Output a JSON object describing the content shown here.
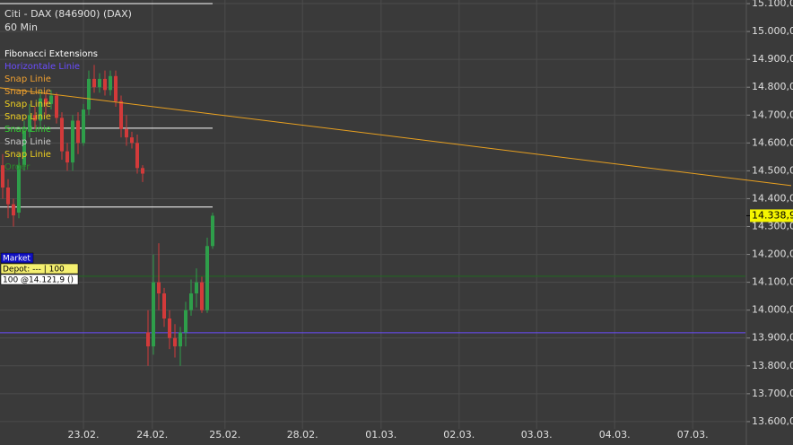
{
  "chart_data": {
    "type": "candlestick",
    "title": "Citi - DAX (846900) (DAX)",
    "subtitle": "60 Min",
    "x": [
      0.5,
      1.5,
      2.5,
      3.5,
      4.5,
      5.5,
      6.5,
      7.5,
      8.5,
      9.5,
      10.5,
      11.5,
      12.5,
      13.5,
      14.5,
      15.5,
      16.5,
      17.5,
      18.5,
      19.5,
      20.5,
      21.5,
      22.5,
      23.5,
      24.5,
      25.5,
      26.5,
      27.5,
      28.5,
      29.5,
      30.5,
      31.5,
      32.5,
      33.5,
      34.5,
      35.5,
      36.5,
      37.5,
      38.5,
      39.5
    ],
    "open": [
      14520,
      14440,
      14380,
      14350,
      14520,
      14640,
      14700,
      14680,
      14760,
      14740,
      14770,
      14690,
      14570,
      14530,
      14680,
      14600,
      14720,
      14830,
      14800,
      14830,
      14790,
      14840,
      14750,
      14650,
      14620,
      14600,
      14510,
      13920,
      13870,
      14100,
      14060,
      13970,
      13900,
      13870,
      13920,
      14000,
      14060,
      14100,
      14000,
      14230
    ],
    "high": [
      14560,
      14470,
      14400,
      14560,
      14680,
      14740,
      14730,
      14790,
      14780,
      14790,
      14780,
      14710,
      14600,
      14700,
      14710,
      14740,
      14860,
      14880,
      14850,
      14860,
      14860,
      14860,
      14770,
      14700,
      14640,
      14630,
      14520,
      14000,
      14200,
      14240,
      14080,
      14000,
      13950,
      13940,
      14030,
      14110,
      14150,
      14120,
      14260,
      14350
    ],
    "low": [
      14400,
      14330,
      14300,
      14330,
      14500,
      14620,
      14650,
      14660,
      14700,
      14720,
      14670,
      14540,
      14500,
      14500,
      14560,
      14590,
      14700,
      14780,
      14780,
      14770,
      14770,
      14730,
      14620,
      14590,
      14580,
      14490,
      14460,
      13800,
      13840,
      14000,
      13940,
      13860,
      13830,
      13800,
      13870,
      13980,
      14010,
      13990,
      13990,
      14220
    ],
    "close": [
      14440,
      14380,
      14340,
      14520,
      14640,
      14700,
      14680,
      14760,
      14740,
      14770,
      14690,
      14570,
      14530,
      14680,
      14600,
      14720,
      14830,
      14800,
      14830,
      14790,
      14840,
      14750,
      14650,
      14620,
      14600,
      14510,
      14490,
      13870,
      14100,
      14060,
      13970,
      13900,
      13870,
      13920,
      14000,
      14060,
      14100,
      14000,
      14230,
      14338.9
    ],
    "up_color": "#2e9e4a",
    "down_color": "#d23a3a",
    "xlim": [
      0,
      147
    ],
    "ylim": [
      13574,
      15113
    ],
    "yticks": [
      {
        "value": 13600,
        "label": "13.600,0"
      },
      {
        "value": 13700,
        "label": "13.700,0"
      },
      {
        "value": 13800,
        "label": "13.800,0"
      },
      {
        "value": 13900,
        "label": "13.900,0"
      },
      {
        "value": 14000,
        "label": "14.000,0"
      },
      {
        "value": 14100,
        "label": "14.100,0"
      },
      {
        "value": 14200,
        "label": "14.200,0"
      },
      {
        "value": 14300,
        "label": "14.300,0"
      },
      {
        "value": 14400,
        "label": "14.400,0"
      },
      {
        "value": 14500,
        "label": "14.500,0"
      },
      {
        "value": 14600,
        "label": "14.600,0"
      },
      {
        "value": 14700,
        "label": "14.700,0"
      },
      {
        "value": 14800,
        "label": "14.800,0"
      },
      {
        "value": 14900,
        "label": "14.900,0"
      },
      {
        "value": 15000,
        "label": "15.000,0"
      },
      {
        "value": 15100,
        "label": "15.100,0"
      }
    ],
    "xticks": [
      {
        "value": 15.5,
        "label": "23.02."
      },
      {
        "value": 28.3,
        "label": "24.02."
      },
      {
        "value": 41.8,
        "label": "25.02."
      },
      {
        "value": 56.2,
        "label": "28.02."
      },
      {
        "value": 70.8,
        "label": "01.03."
      },
      {
        "value": 85.3,
        "label": "02.03."
      },
      {
        "value": 99.7,
        "label": "03.03."
      },
      {
        "value": 114.2,
        "label": "04.03."
      },
      {
        "value": 128.7,
        "label": "07.03."
      }
    ],
    "grid": true,
    "legend": [
      {
        "name": "Fibonacci Extensions",
        "color": "#ffffff"
      },
      {
        "name": "Horizontale Linie",
        "color": "#6a4cff"
      },
      {
        "name": "Snap Linie",
        "color": "#f0a030"
      },
      {
        "name": "Snap Linie",
        "color": "#f0a030"
      },
      {
        "name": "Snap Linie",
        "color": "#f0d020"
      },
      {
        "name": "Snap Linie",
        "color": "#f0d020"
      },
      {
        "name": "Snap Linie",
        "color": "#30d030"
      },
      {
        "name": "Snap Linie",
        "color": "#c8c8c8"
      },
      {
        "name": "Snap Linie",
        "color": "#f0d020"
      },
      {
        "name": "Order",
        "color": "#2a8a2a"
      }
    ],
    "hlines": [
      {
        "value": 15100,
        "x": [
          0,
          39.5
        ],
        "color": "#ffffff"
      },
      {
        "value": 14653,
        "x": [
          0,
          39.5
        ],
        "color": "#ffffff"
      },
      {
        "value": 14370,
        "x": [
          0,
          39.5
        ],
        "color": "#ffffff"
      },
      {
        "value": 14121.9,
        "x": [
          0,
          138.5
        ],
        "color": "#1f6a1f"
      },
      {
        "value": 13919,
        "x": [
          0,
          138.5
        ],
        "color": "#6a4cff"
      }
    ],
    "trendline": {
      "x": [
        0,
        147
      ],
      "y": [
        14798,
        14447
      ],
      "color": "#e8a020"
    },
    "last_price": {
      "value": 14338.9,
      "label": "14.338,9"
    },
    "order_panel": [
      "Market",
      "Depot: --- | 100",
      "100 @14.121,9 ()"
    ]
  }
}
